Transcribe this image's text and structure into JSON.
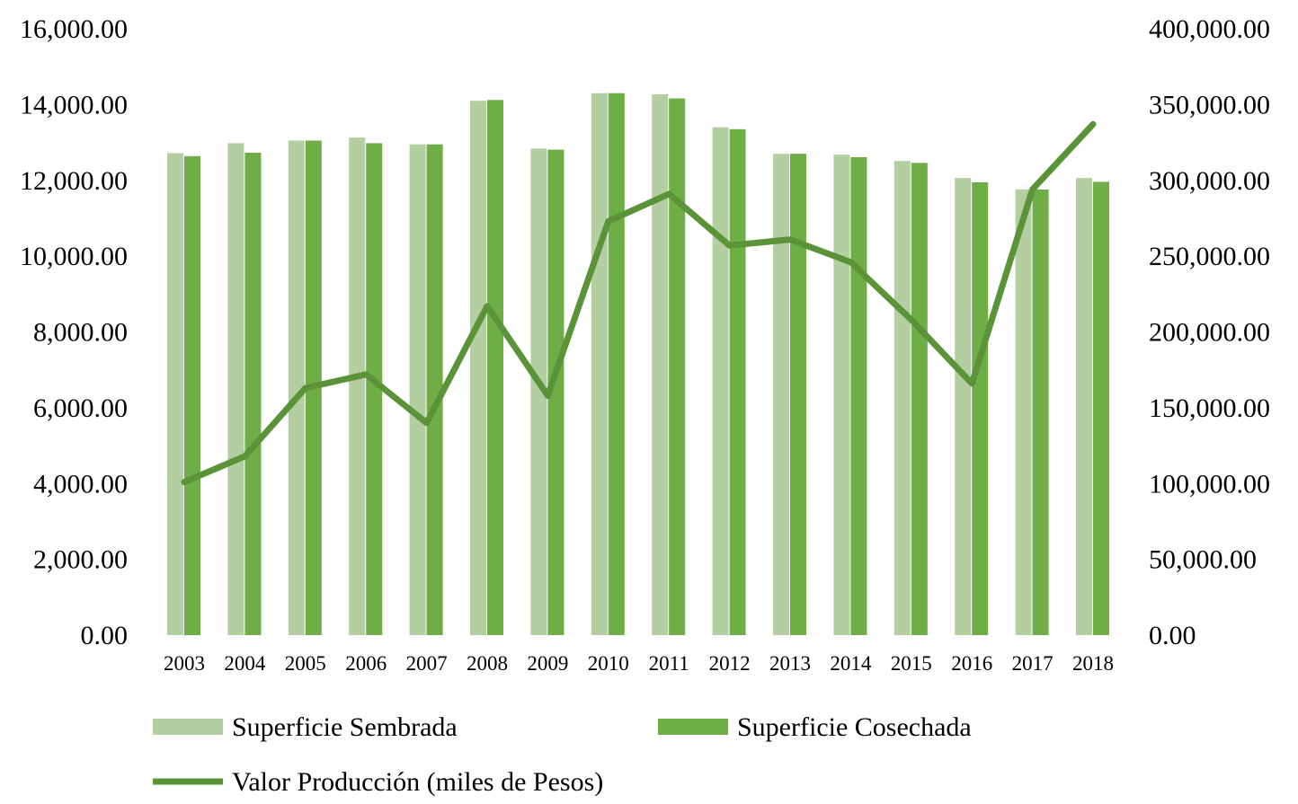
{
  "chart_data": {
    "type": "bar+line",
    "categories": [
      "2003",
      "2004",
      "2005",
      "2006",
      "2007",
      "2008",
      "2009",
      "2010",
      "2011",
      "2012",
      "2013",
      "2014",
      "2015",
      "2016",
      "2017",
      "2018"
    ],
    "series": [
      {
        "name": "Superficie Sembrada",
        "type": "bar",
        "axis": "left",
        "color": "#b3cfa2",
        "values": [
          12720,
          12980,
          13050,
          13130,
          12950,
          14100,
          12840,
          14300,
          14270,
          13400,
          12700,
          12680,
          12510,
          12060,
          11760,
          12060
        ]
      },
      {
        "name": "Superficie Cosechada",
        "type": "bar",
        "axis": "left",
        "color": "#6fad47",
        "values": [
          12640,
          12730,
          13050,
          12980,
          12950,
          14120,
          12810,
          14300,
          14160,
          13350,
          12700,
          12610,
          12460,
          11950,
          11760,
          11960
        ]
      },
      {
        "name": "Valor Producción (miles de Pesos)",
        "type": "line",
        "axis": "right",
        "color": "#5b9438",
        "values": [
          101000,
          118000,
          163000,
          172000,
          140000,
          217000,
          158000,
          273000,
          291000,
          257000,
          261000,
          246000,
          208000,
          166000,
          294000,
          337000
        ]
      }
    ],
    "left_axis": {
      "range": [
        0,
        16000
      ],
      "ticks": [
        "0.00",
        "2,000.00",
        "4,000.00",
        "6,000.00",
        "8,000.00",
        "10,000.00",
        "12,000.00",
        "14,000.00",
        "16,000.00"
      ]
    },
    "right_axis": {
      "range": [
        0,
        400000
      ],
      "ticks": [
        "0.00",
        "50,000.00",
        "100,000.00",
        "150,000.00",
        "200,000.00",
        "250,000.00",
        "300,000.00",
        "350,000.00",
        "400,000.00"
      ]
    },
    "title": "",
    "xlabel": "",
    "ylabel": "",
    "grid": false,
    "legend_position": "bottom"
  }
}
